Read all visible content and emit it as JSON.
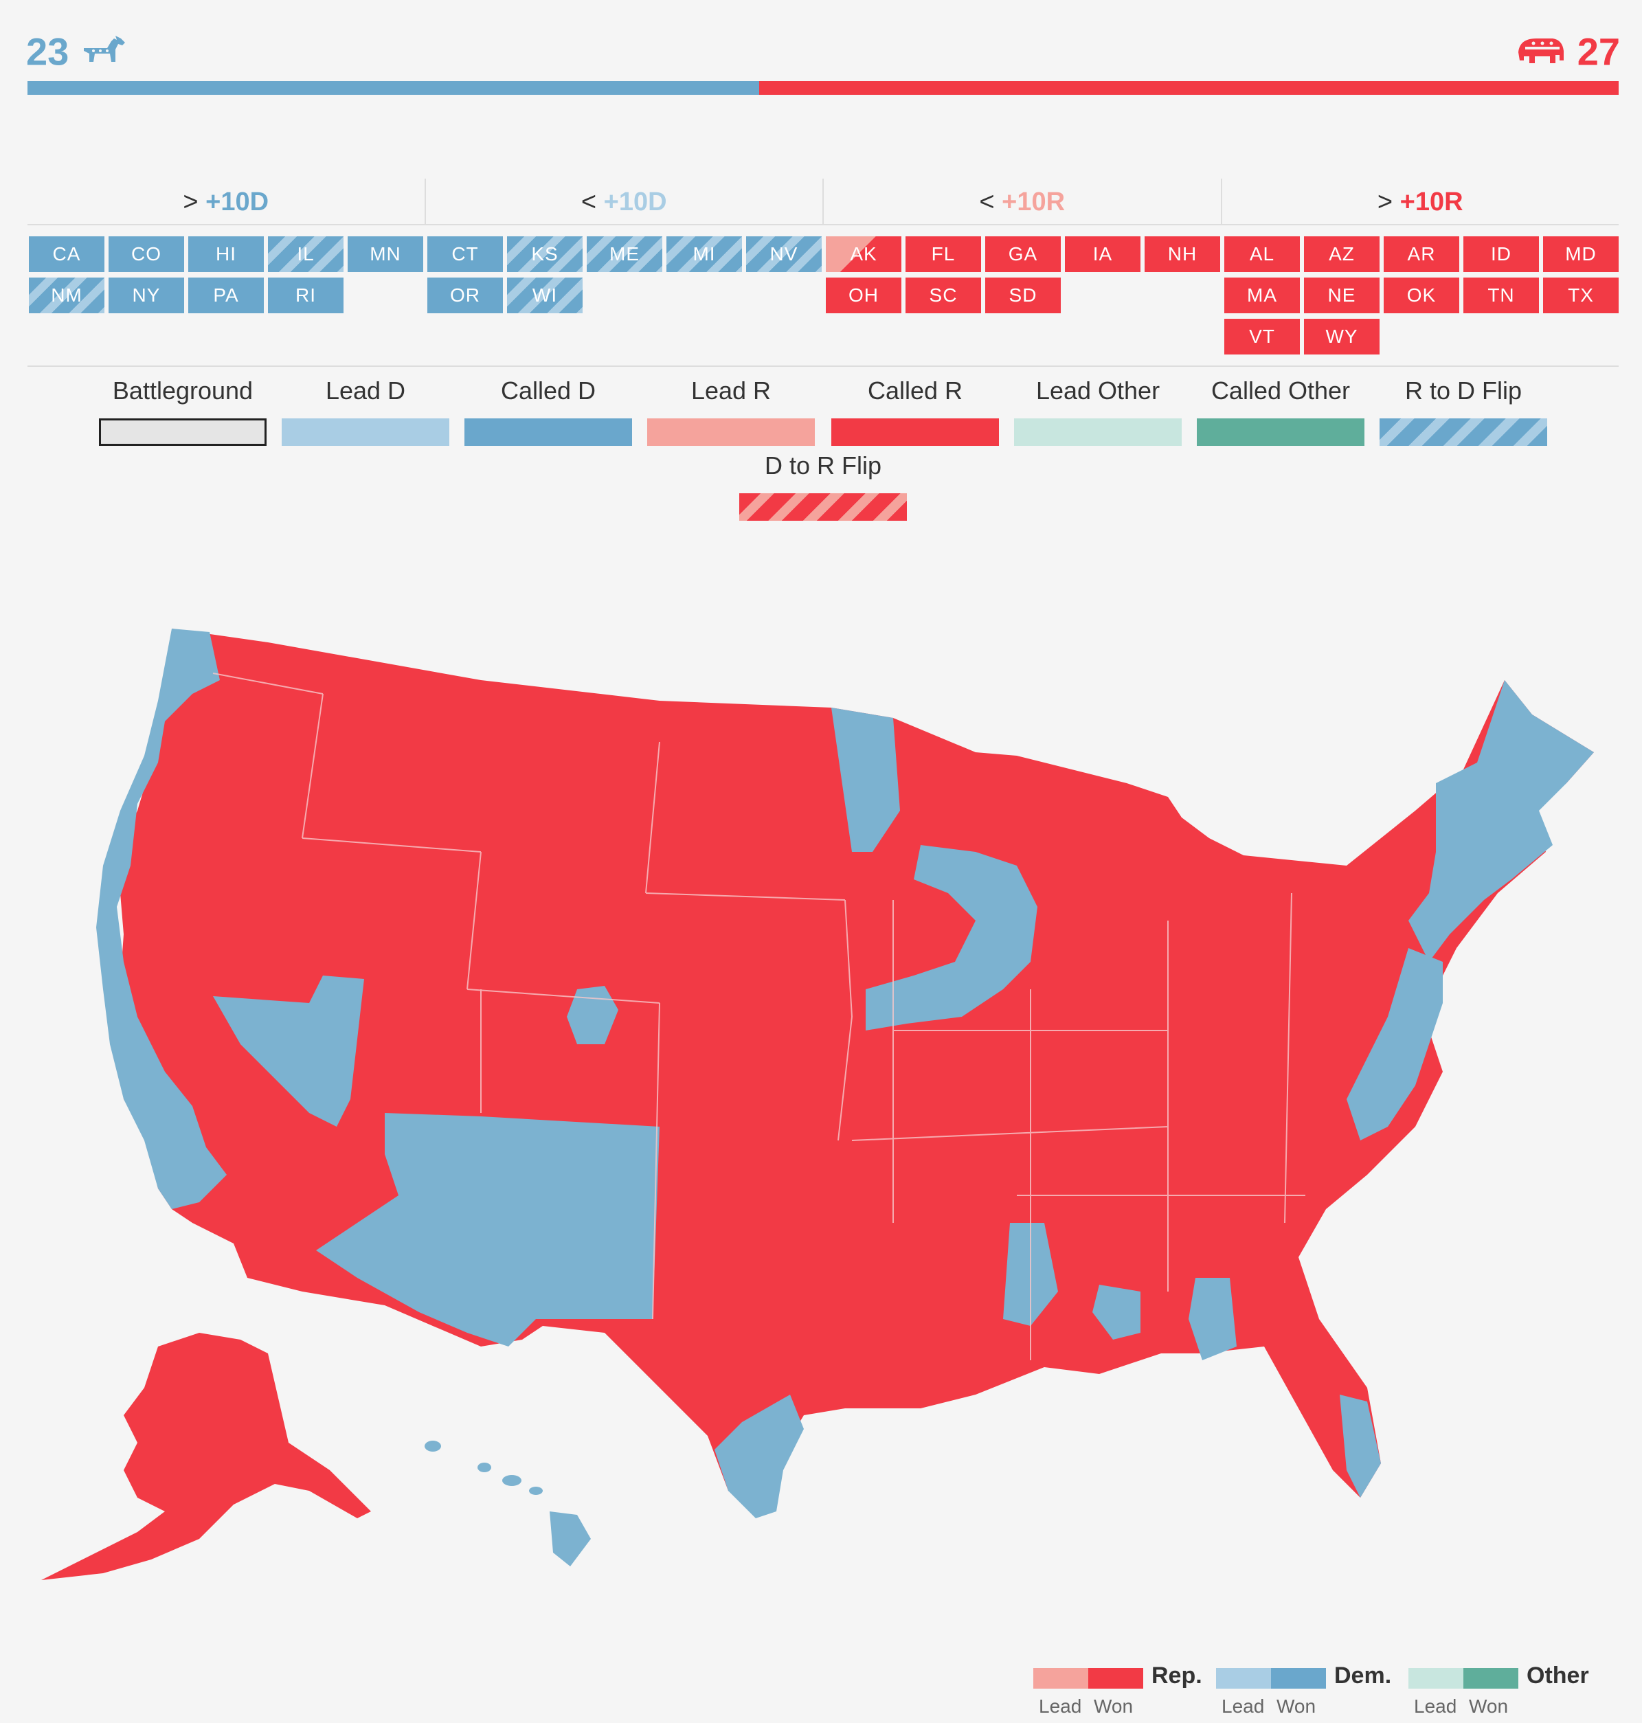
{
  "header": {
    "dem_count": "23",
    "rep_count": "27",
    "dem_icon": "donkey-icon",
    "rep_icon": "elephant-icon",
    "dem_share": 0.46,
    "colors": {
      "dem": "#6aa7cc",
      "rep": "#f23a45"
    }
  },
  "categories": [
    {
      "prefix": ">",
      "label": "+10D",
      "color": "#6aa7cc"
    },
    {
      "prefix": "<",
      "label": "+10D",
      "color": "#a9cde4"
    },
    {
      "prefix": "<",
      "label": "+10R",
      "color": "#f5a39c"
    },
    {
      "prefix": ">",
      "label": "+10R",
      "color": "#f23a45"
    }
  ],
  "states": {
    "strong_d": [
      "CA",
      "CO",
      "HI",
      "IL",
      "MN",
      "NM",
      "NY",
      "PA",
      "RI"
    ],
    "lean_d": [
      "CT",
      "KS",
      "ME",
      "MI",
      "NV",
      "OR",
      "WI"
    ],
    "lean_r": [
      "AK",
      "FL",
      "GA",
      "IA",
      "NH",
      "OH",
      "SC",
      "SD"
    ],
    "strong_r": [
      "AL",
      "AZ",
      "AR",
      "ID",
      "MD",
      "MA",
      "NE",
      "OK",
      "TN",
      "TX",
      "VT",
      "WY"
    ]
  },
  "legend": [
    {
      "label": "Battleground",
      "swatch": "#e5e5e5"
    },
    {
      "label": "Lead D",
      "swatch": "#a9cde4"
    },
    {
      "label": "Called D",
      "swatch": "#6aa7cc"
    },
    {
      "label": "Lead R",
      "swatch": "#f5a39c"
    },
    {
      "label": "Called R",
      "swatch": "#f23a45"
    },
    {
      "label": "Lead Other",
      "swatch": "#c8e6df"
    },
    {
      "label": "Called Other",
      "swatch": "#5fae9b"
    },
    {
      "label": "R to D Flip",
      "swatch": "striped-blue"
    },
    {
      "label": "D to R Flip",
      "swatch": "striped-red"
    }
  ],
  "key": {
    "rep": "Rep.",
    "dem": "Dem.",
    "other": "Other",
    "lead": "Lead",
    "won": "Won"
  }
}
